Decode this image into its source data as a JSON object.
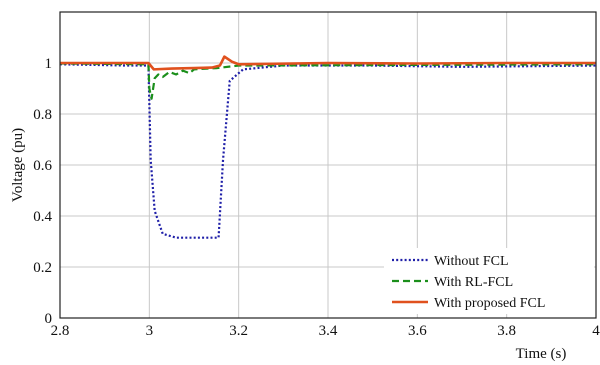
{
  "chart_data": {
    "type": "line",
    "title": "",
    "xlabel": "Time (s)",
    "ylabel": "Voltage (pu)",
    "xlim": [
      2.8,
      4.0
    ],
    "ylim": [
      0,
      1.2
    ],
    "xticks": [
      "2.8",
      "3",
      "3.2",
      "3.4",
      "3.6",
      "3.8",
      "4"
    ],
    "yticks": [
      "0",
      "0.2",
      "0.4",
      "0.6",
      "0.8",
      "1"
    ],
    "grid": true,
    "legend_position": "bottom-right",
    "series": [
      {
        "name": "Without FCL",
        "color": "#1f1fa8",
        "style": "dotted",
        "points": [
          [
            2.8,
            0.995
          ],
          [
            2.95,
            0.99
          ],
          [
            2.998,
            0.99
          ],
          [
            3.003,
            0.62
          ],
          [
            3.012,
            0.42
          ],
          [
            3.03,
            0.33
          ],
          [
            3.06,
            0.315
          ],
          [
            3.1,
            0.315
          ],
          [
            3.155,
            0.315
          ],
          [
            3.165,
            0.62
          ],
          [
            3.18,
            0.93
          ],
          [
            3.21,
            0.975
          ],
          [
            3.3,
            0.99
          ],
          [
            3.5,
            0.99
          ],
          [
            3.7,
            0.985
          ],
          [
            4.0,
            0.99
          ]
        ]
      },
      {
        "name": "With RL-FCL",
        "color": "#1b8f1b",
        "style": "dashed",
        "points": [
          [
            2.8,
            0.998
          ],
          [
            2.998,
            0.995
          ],
          [
            3.0,
            0.9
          ],
          [
            3.005,
            0.86
          ],
          [
            3.012,
            0.94
          ],
          [
            3.02,
            0.955
          ],
          [
            3.03,
            0.945
          ],
          [
            3.045,
            0.965
          ],
          [
            3.06,
            0.955
          ],
          [
            3.075,
            0.97
          ],
          [
            3.09,
            0.96
          ],
          [
            3.1,
            0.975
          ],
          [
            3.15,
            0.98
          ],
          [
            3.2,
            0.99
          ],
          [
            4.0,
            0.995
          ]
        ]
      },
      {
        "name": "With proposed  FCL",
        "color": "#e0511e",
        "style": "solid",
        "points": [
          [
            2.8,
            1.0
          ],
          [
            2.998,
            1.0
          ],
          [
            3.01,
            0.975
          ],
          [
            3.05,
            0.978
          ],
          [
            3.1,
            0.98
          ],
          [
            3.14,
            0.982
          ],
          [
            3.158,
            0.99
          ],
          [
            3.168,
            1.025
          ],
          [
            3.185,
            1.005
          ],
          [
            3.2,
            0.995
          ],
          [
            3.4,
            1.0
          ],
          [
            3.6,
            0.998
          ],
          [
            3.8,
            1.0
          ],
          [
            4.0,
            1.0
          ]
        ]
      }
    ]
  }
}
